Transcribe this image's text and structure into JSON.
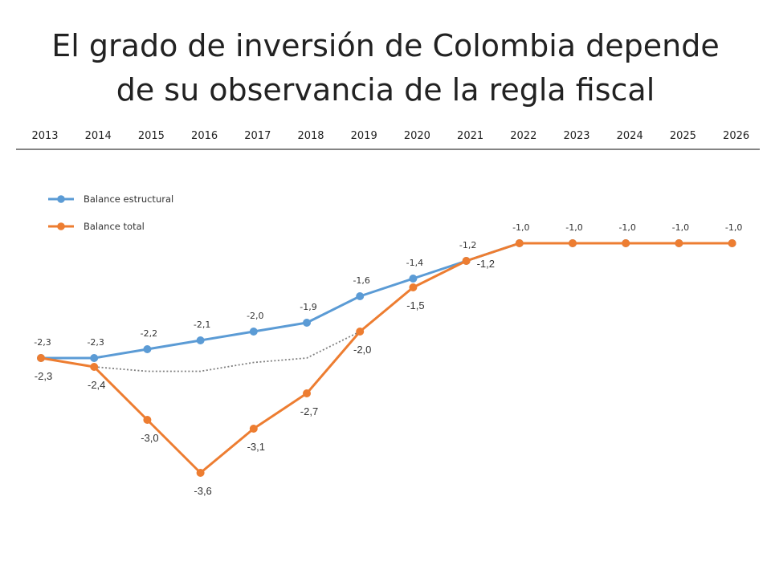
{
  "title": {
    "line1": "El grado de inversión de Colombia depende",
    "line2": "de su observancia de la regla fiscal"
  },
  "chart_data": {
    "type": "line",
    "categories": [
      "2013",
      "2014",
      "2015",
      "2016",
      "2017",
      "2018",
      "2019",
      "2020",
      "2021",
      "2022",
      "2023",
      "2024",
      "2025",
      "2026"
    ],
    "ylim": [
      -4.0,
      -0.8
    ],
    "grid": false,
    "legend_position": "top-left",
    "series": [
      {
        "name": "Balance estructural",
        "color": "#5B9BD5",
        "values": [
          -2.3,
          -2.3,
          -2.2,
          -2.1,
          -2.0,
          -1.9,
          -1.6,
          -1.4,
          -1.2,
          -1.0,
          -1.0,
          -1.0,
          -1.0,
          -1.0
        ],
        "labels": [
          "-2,3",
          "-2,3",
          "-2,2",
          "-2,1",
          "-2,0",
          "-1,9",
          "-1,6",
          "-1,4",
          "-1,2",
          "-1,0",
          "-1,0",
          "-1,0",
          "-1,0",
          "-1,0"
        ]
      },
      {
        "name": "Balance total",
        "color": "#ED7D31",
        "values": [
          -2.3,
          -2.4,
          -3.0,
          -3.6,
          -3.1,
          -2.7,
          -2.0,
          -1.5,
          -1.2,
          -1.0,
          -1.0,
          -1.0,
          -1.0,
          -1.0
        ],
        "labels": [
          "-2,3",
          "-2,4",
          "-3,0",
          "-3,6",
          "-3,1",
          "-2,7",
          "-2,0",
          "-1,5",
          "-1,2",
          "",
          "",
          "",
          "",
          ""
        ]
      }
    ],
    "reference_line": {
      "style": "dotted",
      "color": "#808080",
      "x": [
        "2013",
        "2014",
        "2015",
        "2016",
        "2017",
        "2018",
        "2019"
      ],
      "values": [
        -2.3,
        -2.4,
        -2.45,
        -2.45,
        -2.35,
        -2.3,
        -2.0
      ]
    }
  }
}
